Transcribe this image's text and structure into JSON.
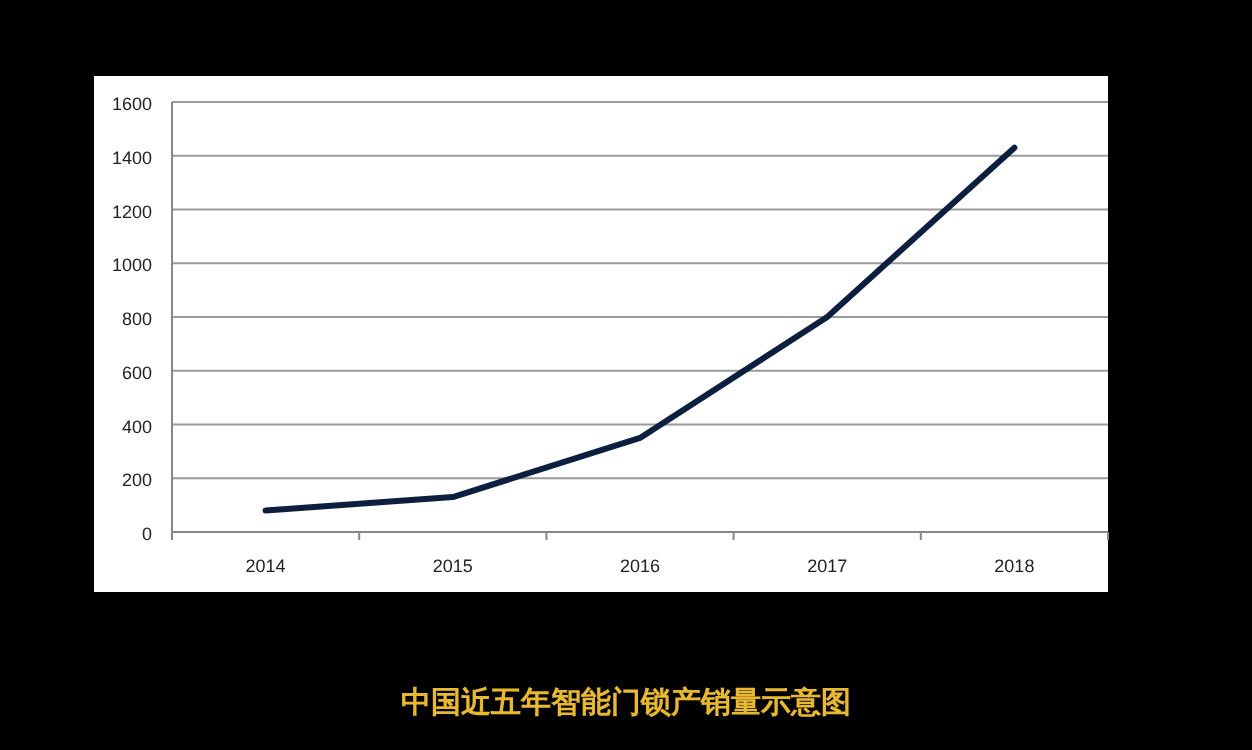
{
  "chart_data": {
    "type": "line",
    "title": "中国近五年智能门锁产销量示意图",
    "categories": [
      "2014",
      "2015",
      "2016",
      "2017",
      "2018"
    ],
    "series": [
      {
        "color": "#0d1f3f",
        "values": [
          80,
          130,
          350,
          800,
          1430
        ]
      }
    ],
    "ylim": [
      0,
      1600
    ],
    "yticks": [
      0,
      200,
      400,
      600,
      800,
      1000,
      1200,
      1400,
      1600
    ],
    "grid": "y"
  }
}
